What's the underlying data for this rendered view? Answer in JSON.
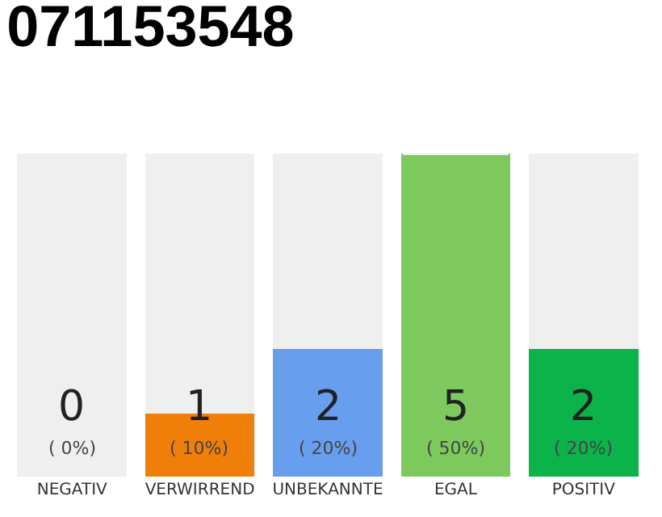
{
  "chart_data": {
    "type": "bar",
    "title": "071153548",
    "stacked": true,
    "categories": [
      "NEGATIV",
      "VERWIRREND",
      "UNBEKANNTE",
      "EGAL",
      "POSITIV"
    ],
    "series": [
      {
        "colors": [
          "#e5233f",
          "#f07f0a",
          "#679eed",
          "#7dc95e",
          "#0bb34a"
        ],
        "values": [
          0,
          1,
          2,
          5,
          2
        ],
        "value_labels": [
          "0\n( 0%)",
          "1\n( 10%)",
          "2\n( 20%)",
          "5\n( 50%)",
          "2\n( 20%)"
        ]
      },
      {
        "color": "#efefef",
        "values": [
          5,
          4,
          3,
          0,
          3
        ]
      }
    ],
    "ylim": [
      0,
      5
    ]
  }
}
